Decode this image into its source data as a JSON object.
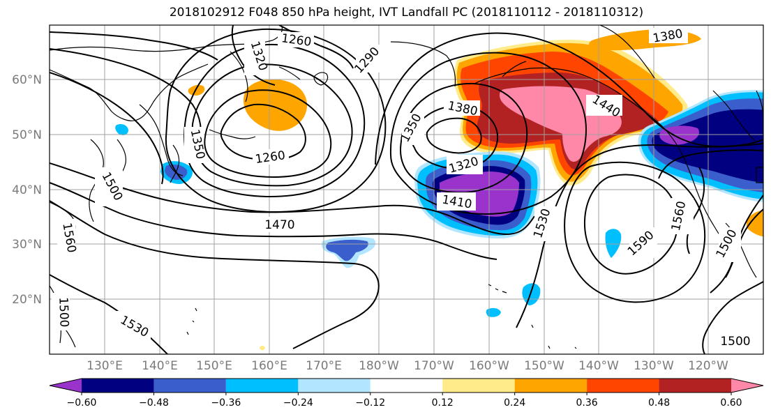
{
  "title": "2018102912 F048 850 hPa height, IVT Landfall PC (2018110112 - 2018110312)",
  "lat_labels": [
    "60°N",
    "50°N",
    "40°N",
    "30°N",
    "20°N"
  ],
  "lon_labels": [
    "130°E",
    "140°E",
    "150°E",
    "160°E",
    "170°E",
    "180°W",
    "170°W",
    "160°W",
    "150°W",
    "140°W",
    "130°W",
    "120°W"
  ],
  "contour_labels": {
    "c1260a": "1260",
    "c1320a": "1320",
    "c1380a": "1380",
    "c1290": "1290",
    "c1380b": "1380",
    "c1440": "1440",
    "c1350a": "1350",
    "c1350b": "1350",
    "c1260b": "1260",
    "c1320b": "1320",
    "c1410": "1410",
    "c1500a": "1500",
    "c1470": "1470",
    "c1560a": "1560",
    "c1530a": "1530",
    "c1530b": "1530",
    "c1590": "1590",
    "c1560b": "1560",
    "c1500b": "1500",
    "c1500c": "1500",
    "c1500d": "1500"
  },
  "colorbar": {
    "colors": [
      "#9933cc",
      "#000080",
      "#3a5fcd",
      "#00bfff",
      "#b2e5ff",
      "#ffffff",
      "#ffeb8a",
      "#ffa500",
      "#ff4500",
      "#b22222",
      "#ff88a8"
    ],
    "tick_labels": [
      "-0.60",
      "-0.48",
      "-0.36",
      "-0.24",
      "-0.12",
      "0.12",
      "0.24",
      "0.36",
      "0.48",
      "0.60"
    ]
  }
}
